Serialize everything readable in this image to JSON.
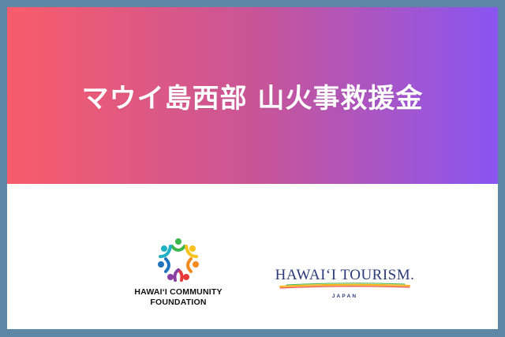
{
  "banner": {
    "headline": "マウイ島西部 山火事救援金",
    "gradient_start": "#f85c6a",
    "gradient_end": "#8a55f2"
  },
  "logos": {
    "hcf": {
      "icon": "people-circle-logo-icon",
      "line1": "HAWAIʻI COMMUNITY",
      "line2": "FOUNDATION"
    },
    "hawaii_tourism": {
      "wordmark": "HAWAIʻI TOURISM.",
      "sub": "JAPAN"
    }
  },
  "colors": {
    "frame_border": "#5e87a6",
    "tourism_navy": "#2a3a78"
  }
}
